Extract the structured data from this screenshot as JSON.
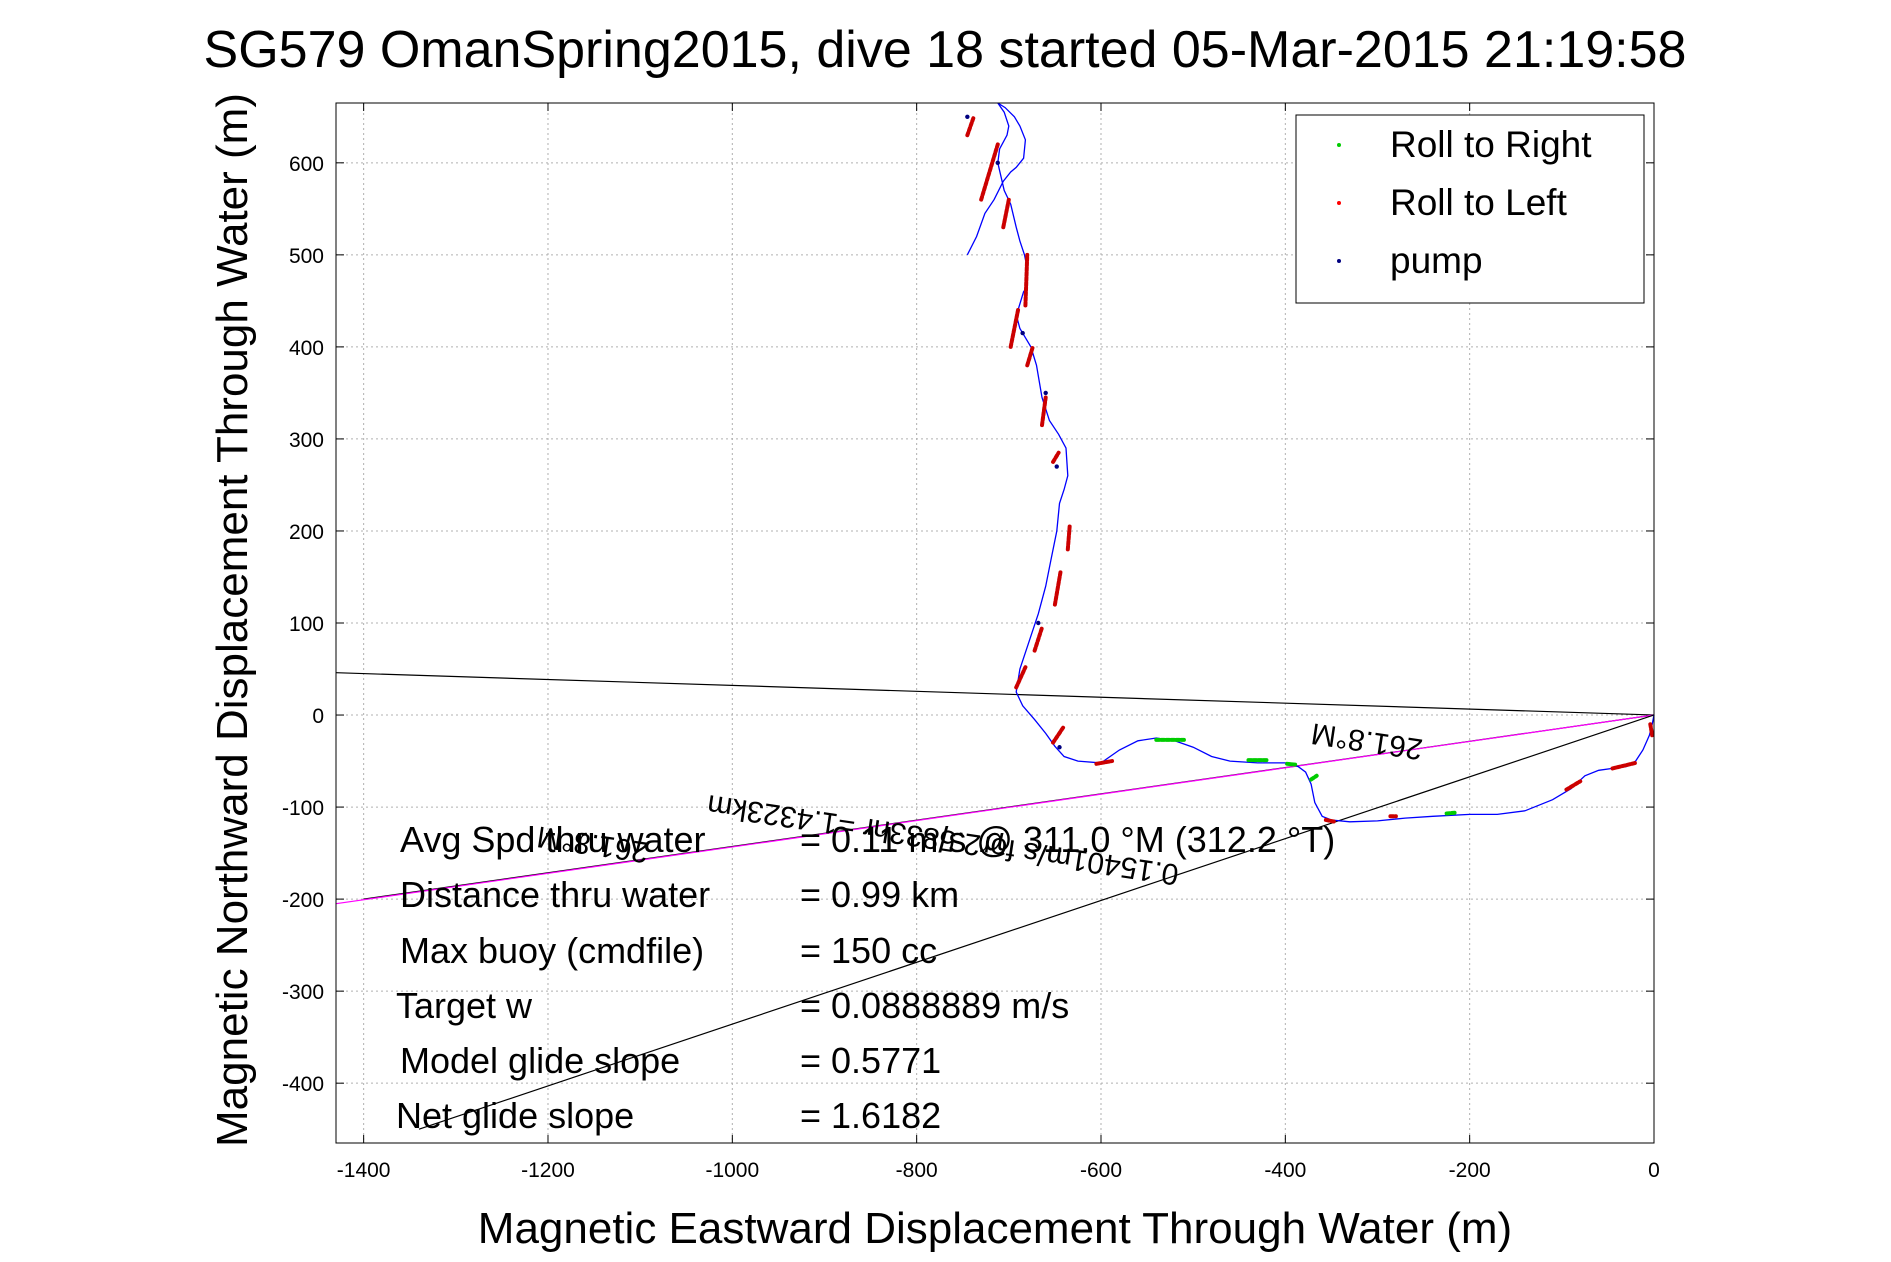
{
  "chart_data": {
    "type": "line",
    "title": "SG579 OmanSpring2015, dive 18 started 05-Mar-2015 21:19:58",
    "xlabel": "Magnetic Eastward Displacement Through Water (m)",
    "ylabel": "Magnetic Northward Displacement Through Water (m)",
    "xlim": [
      -1430,
      0
    ],
    "ylim": [
      -465,
      665
    ],
    "xticks": [
      -1400,
      -1200,
      -1000,
      -800,
      -600,
      -400,
      -200,
      0
    ],
    "yticks": [
      -400,
      -300,
      -200,
      -100,
      0,
      100,
      200,
      300,
      400,
      500,
      600
    ],
    "grid": true,
    "legend_position": "top-right",
    "legend": [
      {
        "label": "Roll to Right",
        "color": "#00cc00"
      },
      {
        "label": "Roll to Left",
        "color": "#ff0000"
      },
      {
        "label": "pump",
        "color": "#000080"
      }
    ],
    "series": [
      {
        "role": "track",
        "color": "#0000ff",
        "x": [
          0,
          -2,
          -5,
          -12,
          -20,
          -30,
          -45,
          -60,
          -75,
          -90,
          -110,
          -140,
          -170,
          -200,
          -240,
          -270,
          -300,
          -330,
          -350,
          -360,
          -368,
          -372,
          -378,
          -386,
          -400,
          -430,
          -460,
          -480,
          -500,
          -520,
          -540,
          -560,
          -580,
          -600,
          -625,
          -640,
          -650,
          -660,
          -672,
          -685,
          -692,
          -688,
          -678,
          -668,
          -660,
          -654,
          -648,
          -645,
          -640,
          -636,
          -638,
          -646,
          -656,
          -664,
          -670,
          -676,
          -682,
          -688,
          -692,
          -690,
          -684,
          -680,
          -680,
          -683,
          -688,
          -692,
          -698,
          -705,
          -712,
          -710,
          -702,
          -700,
          -705,
          -712,
          -704,
          -694,
          -688,
          -682,
          -684,
          -692,
          -698,
          -706,
          -716,
          -726,
          -735,
          -745
        ],
        "y": [
          0,
          -10,
          -22,
          -38,
          -50,
          -56,
          -58,
          -60,
          -66,
          -80,
          -92,
          -104,
          -108,
          -108,
          -110,
          -112,
          -115,
          -116,
          -114,
          -110,
          -95,
          -75,
          -62,
          -56,
          -52,
          -52,
          -50,
          -45,
          -35,
          -28,
          -25,
          -28,
          -38,
          -52,
          -50,
          -45,
          -34,
          -20,
          -5,
          10,
          25,
          50,
          80,
          110,
          140,
          170,
          200,
          230,
          245,
          260,
          290,
          305,
          320,
          345,
          380,
          400,
          410,
          420,
          435,
          440,
          460,
          465,
          485,
          500,
          515,
          530,
          555,
          570,
          600,
          615,
          630,
          640,
          655,
          665,
          660,
          650,
          640,
          625,
          605,
          595,
          590,
          580,
          560,
          545,
          520,
          500
        ]
      },
      {
        "role": "heading-line",
        "color": "#000000",
        "x": [
          0,
          -1430
        ],
        "y": [
          0,
          46
        ]
      },
      {
        "role": "heading-line",
        "color": "#000000",
        "x": [
          0,
          -1400
        ],
        "y": [
          0,
          -200
        ]
      },
      {
        "role": "heading-line",
        "color": "#ff00ff",
        "x": [
          0,
          -1430
        ],
        "y": [
          0,
          -205
        ]
      },
      {
        "role": "heading-line",
        "color": "#000000",
        "x": [
          0,
          -1340
        ],
        "y": [
          0,
          -450
        ]
      }
    ],
    "roll_right_segments": [
      {
        "x": [
          -540,
          -510
        ],
        "y": [
          -27,
          -27
        ]
      },
      {
        "x": [
          -440,
          -420
        ],
        "y": [
          -49,
          -49
        ]
      },
      {
        "x": [
          -398,
          -388
        ],
        "y": [
          -53,
          -54
        ]
      },
      {
        "x": [
          -372,
          -366
        ],
        "y": [
          -70,
          -66
        ]
      },
      {
        "x": [
          -225,
          -215
        ],
        "y": [
          -107,
          -106
        ]
      }
    ],
    "roll_left_segments": [
      {
        "x": [
          -4,
          -2
        ],
        "y": [
          -10,
          -22
        ]
      },
      {
        "x": [
          -45,
          -20
        ],
        "y": [
          -58,
          -52
        ]
      },
      {
        "x": [
          -95,
          -80
        ],
        "y": [
          -81,
          -72
        ]
      },
      {
        "x": [
          -286,
          -280
        ],
        "y": [
          -110,
          -110
        ]
      },
      {
        "x": [
          -356,
          -346
        ],
        "y": [
          -114,
          -116
        ]
      },
      {
        "x": [
          -605,
          -588
        ],
        "y": [
          -53,
          -50
        ]
      },
      {
        "x": [
          -652,
          -640
        ],
        "y": [
          -30,
          -12
        ]
      },
      {
        "x": [
          -692,
          -682
        ],
        "y": [
          30,
          52
        ]
      },
      {
        "x": [
          -672,
          -664
        ],
        "y": [
          70,
          95
        ]
      },
      {
        "x": [
          -650,
          -644
        ],
        "y": [
          120,
          155
        ]
      },
      {
        "x": [
          -636,
          -634
        ],
        "y": [
          180,
          205
        ]
      },
      {
        "x": [
          -652,
          -646
        ],
        "y": [
          275,
          285
        ]
      },
      {
        "x": [
          -664,
          -660
        ],
        "y": [
          315,
          345
        ]
      },
      {
        "x": [
          -680,
          -674
        ],
        "y": [
          380,
          400
        ]
      },
      {
        "x": [
          -698,
          -690
        ],
        "y": [
          400,
          440
        ]
      },
      {
        "x": [
          -682,
          -680
        ],
        "y": [
          445,
          500
        ]
      },
      {
        "x": [
          -706,
          -700
        ],
        "y": [
          530,
          560
        ]
      },
      {
        "x": [
          -730,
          -712
        ],
        "y": [
          560,
          620
        ]
      },
      {
        "x": [
          -745,
          -738
        ],
        "y": [
          630,
          650
        ]
      }
    ],
    "pump_points": [
      {
        "x": -645,
        "y": -35
      },
      {
        "x": -668,
        "y": 100
      },
      {
        "x": -648,
        "y": 270
      },
      {
        "x": -660,
        "y": 350
      },
      {
        "x": -685,
        "y": 415
      },
      {
        "x": -712,
        "y": 600
      },
      {
        "x": -745,
        "y": 650
      }
    ],
    "rotated_annotations": [
      {
        "text": "261.8°M",
        "x": -1150,
        "y": -130,
        "angle": 8.5
      },
      {
        "text": "0.15401m/s for2.5833hr =1.4323km",
        "x": -770,
        "y": -125,
        "angle": 8.5
      },
      {
        "text": "261.8°M",
        "x": -310,
        "y": -18,
        "angle": 8.5
      }
    ],
    "stats": [
      {
        "label": "Avg Spd thru water",
        "value": "=  0.11 m/s @ 311.0 °M (312.2 °T)"
      },
      {
        "label": "Distance thru water",
        "value": "=  0.99 km"
      },
      {
        "label": "Max buoy (cmdfile)",
        "value": "= 150 cc"
      },
      {
        "label": "Target w",
        "value": "= 0.0888889 m/s"
      },
      {
        "label": "Model glide slope",
        "value": "= 0.5771"
      },
      {
        "label": "Net glide slope",
        "value": "= 1.6182"
      }
    ]
  }
}
